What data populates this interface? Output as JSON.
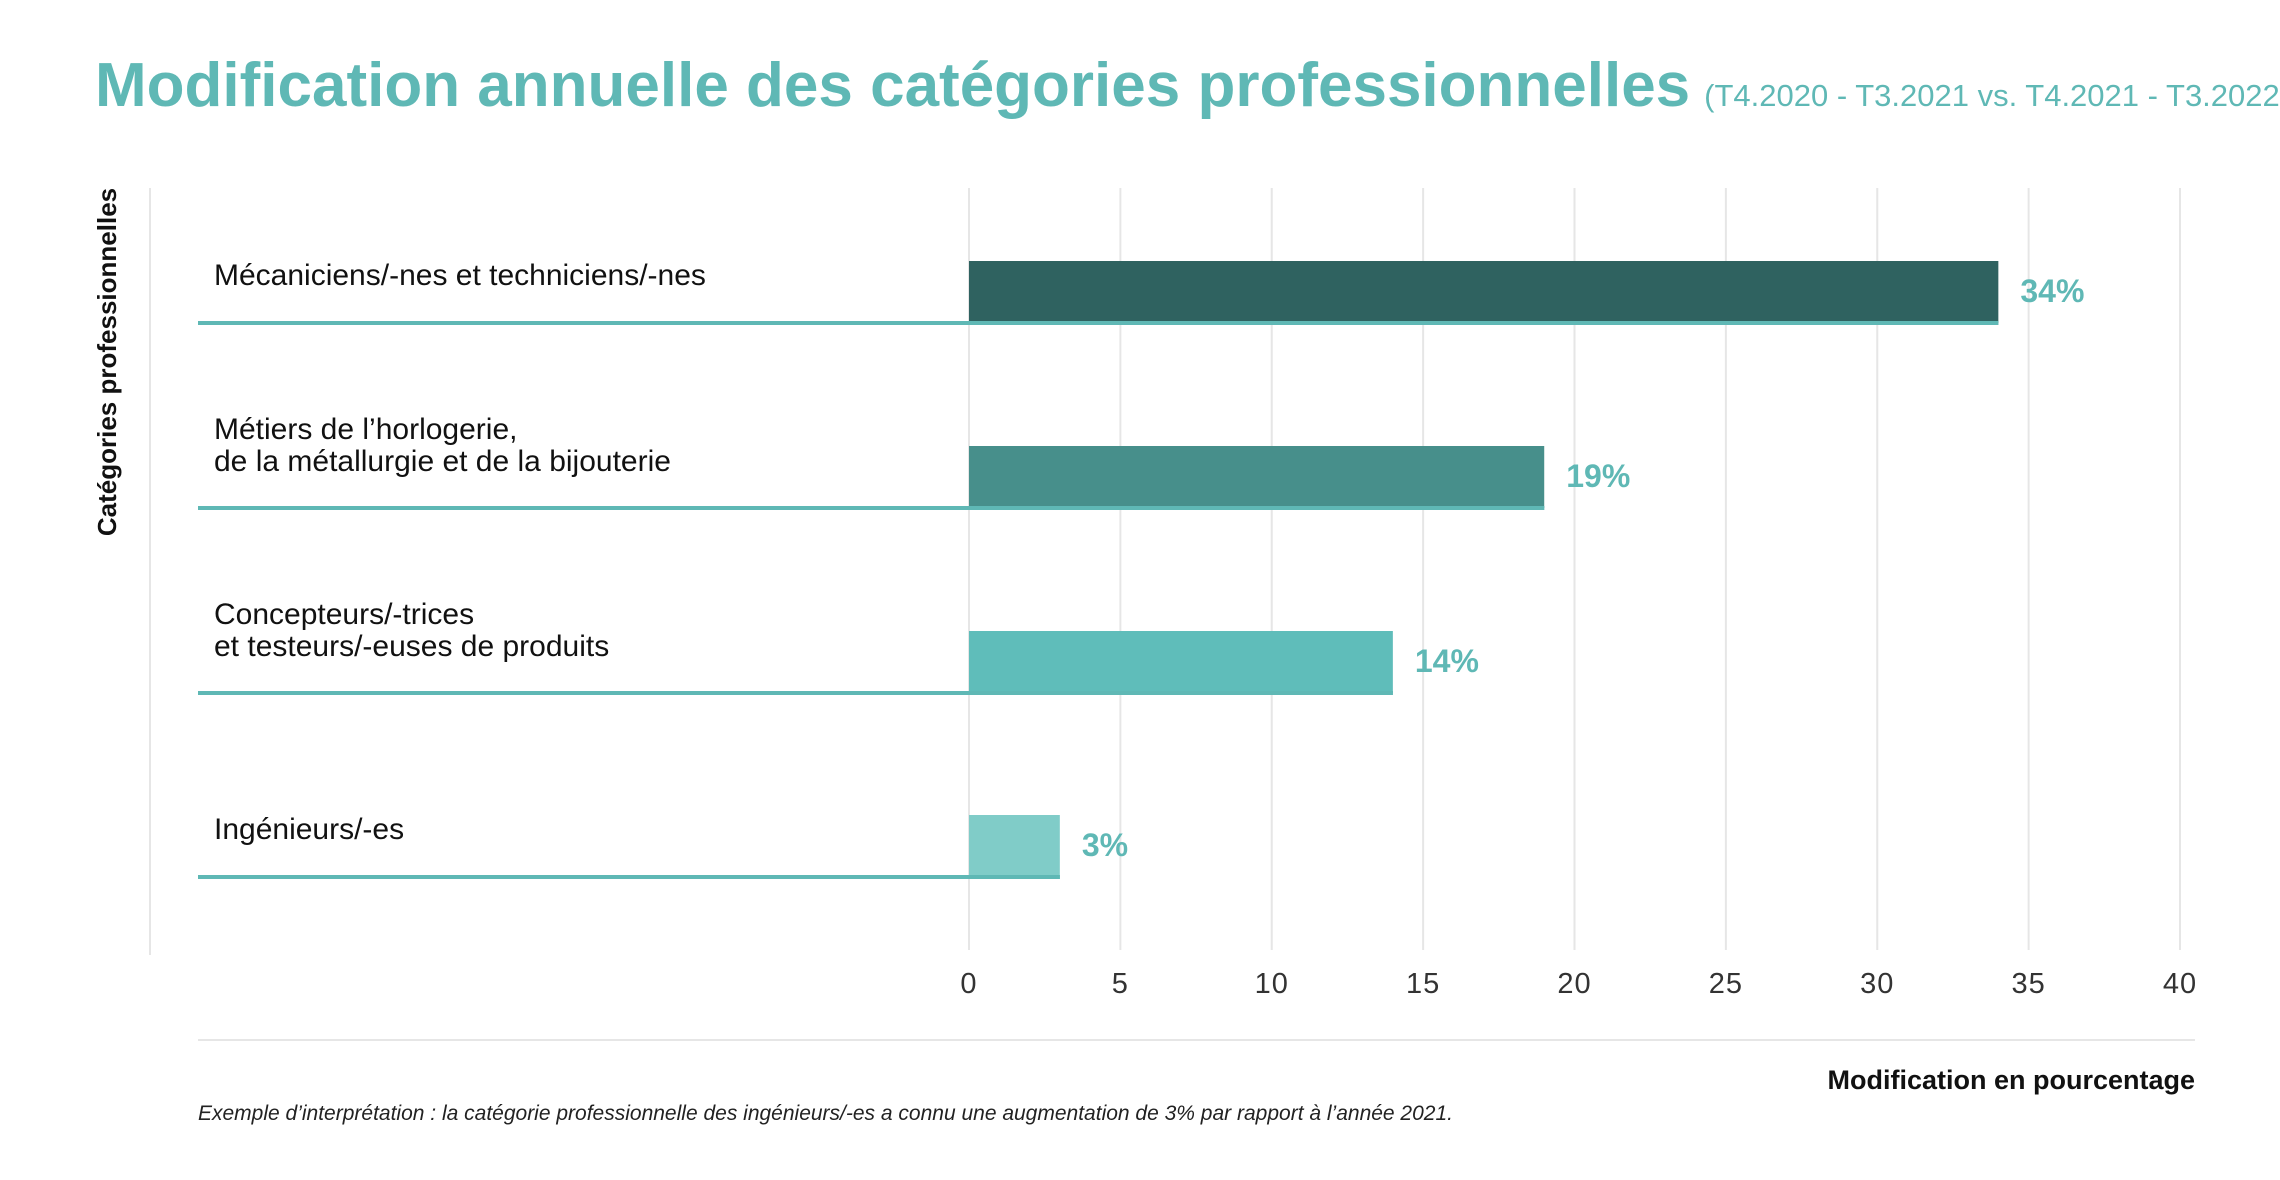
{
  "header": {
    "title": "Modification annuelle des catégories professionnelles",
    "subtitle": "(T4.2020 - T3.2021 vs. T4.2021 - T3.2022)"
  },
  "footnote": "Exemple d’interprétation : la catégorie professionnelle des ingénieurs/-es a connu une augmentation de 3% par rapport à l’année 2021.",
  "colors": {
    "accent": "#5fb8b5",
    "bar_1": "#2f6260",
    "bar_2": "#478f8b",
    "bar_3": "#5fbdba",
    "bar_4": "#80ccc8",
    "grid": "#e6e6e6",
    "text": "#111111"
  },
  "chart_data": {
    "type": "bar",
    "orientation": "horizontal",
    "ylabel": "Catégories professionnelles",
    "xlabel": "Modification en pourcentage",
    "xlim": [
      0,
      40
    ],
    "xticks": [
      0,
      5,
      10,
      15,
      20,
      25,
      30,
      35,
      40
    ],
    "grid": "vertical",
    "categories": [
      [
        "Mécaniciens/-nes et techniciens/-nes"
      ],
      [
        "Métiers de l’horlogerie,",
        "de la métallurgie et de la bijouterie"
      ],
      [
        "Concepteurs/-trices",
        "et testeurs/-euses de produits"
      ],
      [
        "Ingénieurs/-es"
      ]
    ],
    "values": [
      34,
      19,
      14,
      3
    ],
    "value_labels": [
      "34%",
      "19%",
      "14%",
      "3%"
    ]
  }
}
